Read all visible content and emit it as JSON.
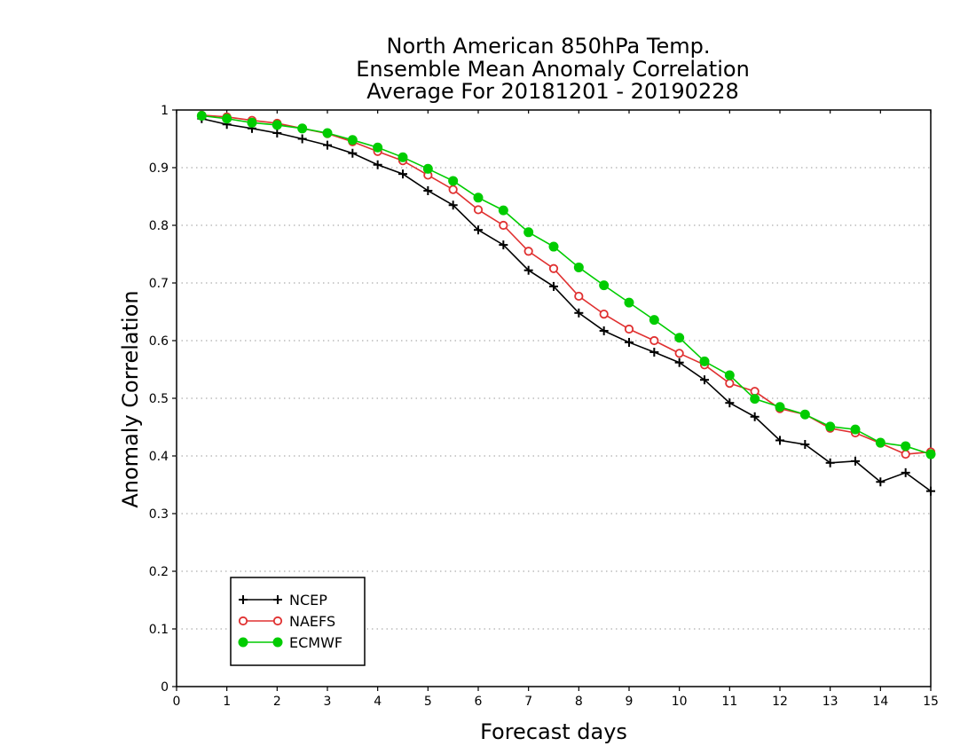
{
  "chart_data": {
    "type": "line",
    "title": [
      "North American 850hPa Temp.",
      "Ensemble Mean Anomaly Correlation",
      "Average For 20181201 - 20190228"
    ],
    "xlabel": "Forecast days",
    "ylabel": "Anomaly Correlation",
    "xlim": [
      0,
      15
    ],
    "ylim": [
      0,
      1
    ],
    "xticks": [
      0,
      1,
      2,
      3,
      4,
      5,
      6,
      7,
      8,
      9,
      10,
      11,
      12,
      13,
      14,
      15
    ],
    "yticks": [
      0,
      0.1,
      0.2,
      0.3,
      0.4,
      0.5,
      0.6,
      0.7,
      0.8,
      0.9,
      1
    ],
    "xtick_labels": [
      "0",
      "1",
      "2",
      "3",
      "4",
      "5",
      "6",
      "7",
      "8",
      "9",
      "10",
      "11",
      "12",
      "13",
      "14",
      "15"
    ],
    "ytick_labels": [
      "0",
      "0.1",
      "0.2",
      "0.3",
      "0.4",
      "0.5",
      "0.6",
      "0.7",
      "0.8",
      "0.9",
      "1"
    ],
    "grid": true,
    "legend_position": "bottom-left",
    "x": [
      0.5,
      1,
      1.5,
      2,
      2.5,
      3,
      3.5,
      4,
      4.5,
      5,
      5.5,
      6,
      6.5,
      7,
      7.5,
      8,
      8.5,
      9,
      9.5,
      10,
      10.5,
      11,
      11.5,
      12,
      12.5,
      13,
      13.5,
      14,
      14.5,
      15
    ],
    "series": [
      {
        "name": "NCEP",
        "color": "#000000",
        "marker": "plus",
        "values": [
          0.985,
          0.975,
          0.968,
          0.96,
          0.95,
          0.939,
          0.925,
          0.905,
          0.889,
          0.86,
          0.835,
          0.792,
          0.766,
          0.722,
          0.694,
          0.648,
          0.617,
          0.597,
          0.58,
          0.562,
          0.532,
          0.492,
          0.468,
          0.427,
          0.42,
          0.388,
          0.391,
          0.355,
          0.371,
          0.339
        ]
      },
      {
        "name": "NAEFS",
        "color": "#e03030",
        "marker": "open-circle",
        "values": [
          0.991,
          0.988,
          0.982,
          0.977,
          0.968,
          0.959,
          0.945,
          0.928,
          0.912,
          0.887,
          0.862,
          0.827,
          0.8,
          0.755,
          0.725,
          0.677,
          0.646,
          0.62,
          0.6,
          0.578,
          0.558,
          0.526,
          0.512,
          0.482,
          0.472,
          0.448,
          0.44,
          0.422,
          0.403,
          0.407
        ]
      },
      {
        "name": "ECMWF",
        "color": "#00cc00",
        "marker": "filled-circle",
        "values": [
          0.99,
          0.985,
          0.978,
          0.974,
          0.968,
          0.96,
          0.948,
          0.935,
          0.918,
          0.898,
          0.877,
          0.848,
          0.826,
          0.788,
          0.763,
          0.727,
          0.696,
          0.666,
          0.636,
          0.605,
          0.564,
          0.54,
          0.499,
          0.485,
          0.472,
          0.451,
          0.446,
          0.423,
          0.417,
          0.403
        ]
      }
    ]
  }
}
